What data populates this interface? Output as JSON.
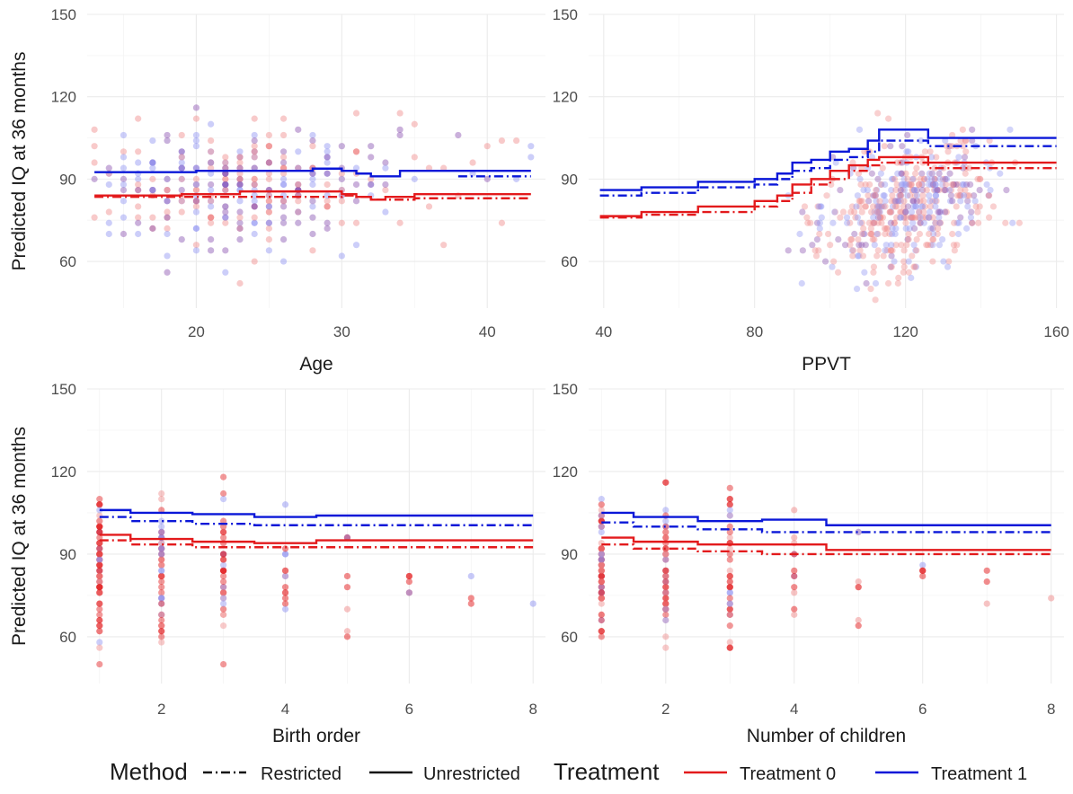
{
  "colors": {
    "treatment0": "#e31a1c",
    "treatment1": "#0a17d8",
    "point_red": "#f08a8a",
    "point_blue": "#8f93f2",
    "point_purple": "#8a4fb0",
    "grid": "#ebebeb"
  },
  "legend": {
    "method_title": "Method",
    "method_items": [
      {
        "label": "Restricted",
        "linetype": "dashdot"
      },
      {
        "label": "Unrestricted",
        "linetype": "solid"
      }
    ],
    "treatment_title": "Treatment",
    "treatment_items": [
      {
        "label": "Treatment 0",
        "color": "#e31a1c"
      },
      {
        "label": "Treatment 1",
        "color": "#0a17d8"
      }
    ],
    "placement": "bottom"
  },
  "chart_data": [
    {
      "type": "scatter",
      "panel": "top-left",
      "xlabel": "Age",
      "ylabel": "Predicted IQ at 36 months",
      "xlim": [
        12.5,
        44
      ],
      "ylim": [
        43,
        150
      ],
      "xticks": [
        20,
        30,
        40
      ],
      "yticks": [
        60,
        90,
        120,
        150
      ],
      "grid": true,
      "points_x_range": [
        13,
        43
      ],
      "series": [
        {
          "name": "Treatment 1 Unrestricted",
          "treatment": 1,
          "method": "Unrestricted",
          "x": [
            13,
            20,
            28,
            30,
            31,
            32,
            34,
            43
          ],
          "y": [
            92.5,
            93,
            93.8,
            93,
            92,
            91,
            93,
            93
          ]
        },
        {
          "name": "Treatment 1 Restricted",
          "treatment": 1,
          "method": "Restricted",
          "x": [
            38,
            43
          ],
          "y": [
            91,
            91
          ]
        },
        {
          "name": "Treatment 0 Unrestricted",
          "treatment": 0,
          "method": "Unrestricted",
          "x": [
            13,
            19,
            23,
            29,
            30,
            31,
            32,
            33,
            35,
            43
          ],
          "y": [
            84,
            84.5,
            85.5,
            85.5,
            84.5,
            83.5,
            82.5,
            83.5,
            84.5,
            84.5
          ]
        },
        {
          "name": "Treatment 0 Restricted",
          "treatment": 0,
          "method": "Restricted",
          "x": [
            13,
            30,
            31,
            32,
            35,
            43
          ],
          "y": [
            83.5,
            84,
            83.5,
            82.5,
            83,
            83
          ]
        }
      ]
    },
    {
      "type": "scatter",
      "panel": "top-right",
      "xlabel": "PPVT",
      "ylabel": "",
      "xlim": [
        36,
        162
      ],
      "ylim": [
        43,
        150
      ],
      "xticks": [
        40,
        80,
        120,
        160
      ],
      "yticks": [
        60,
        90,
        120,
        150
      ],
      "grid": true,
      "points_x_range": [
        40,
        160
      ],
      "series": [
        {
          "name": "Treatment 1 Unrestricted",
          "treatment": 1,
          "method": "Unrestricted",
          "x": [
            39,
            50,
            65,
            80,
            86,
            90,
            95,
            100,
            105,
            110,
            113,
            126,
            160
          ],
          "y": [
            86,
            87,
            89,
            90,
            92,
            96,
            97,
            100,
            101,
            104,
            108,
            105,
            105
          ]
        },
        {
          "name": "Treatment 1 Restricted",
          "treatment": 1,
          "method": "Restricted",
          "x": [
            39,
            50,
            65,
            80,
            86,
            90,
            95,
            100,
            105,
            110,
            113,
            126,
            160
          ],
          "y": [
            84,
            85,
            87,
            88,
            90,
            93,
            94,
            97,
            98,
            100,
            104,
            102,
            102
          ]
        },
        {
          "name": "Treatment 0 Unrestricted",
          "treatment": 0,
          "method": "Unrestricted",
          "x": [
            39,
            50,
            65,
            80,
            86,
            90,
            95,
            100,
            105,
            110,
            113,
            126,
            160
          ],
          "y": [
            76.5,
            78,
            80,
            82,
            84,
            88,
            90,
            93,
            95,
            97,
            98,
            96,
            96
          ]
        },
        {
          "name": "Treatment 0 Restricted",
          "treatment": 0,
          "method": "Restricted",
          "x": [
            39,
            50,
            65,
            80,
            86,
            90,
            95,
            100,
            105,
            110,
            113,
            126,
            160
          ],
          "y": [
            76,
            77,
            78,
            80,
            82,
            85,
            88,
            90,
            93,
            95,
            96,
            94,
            94
          ]
        }
      ]
    },
    {
      "type": "scatter",
      "panel": "bottom-left",
      "xlabel": "Birth order",
      "ylabel": "Predicted IQ at 36 months",
      "xlim": [
        0.8,
        8.2
      ],
      "ylim": [
        43,
        150
      ],
      "xticks": [
        2,
        4,
        6,
        8
      ],
      "yticks": [
        60,
        90,
        120,
        150
      ],
      "grid": true,
      "points_x_range": [
        1,
        8
      ],
      "series": [
        {
          "name": "Treatment 1 Unrestricted",
          "treatment": 1,
          "method": "Unrestricted",
          "x": [
            1,
            1.5,
            2.5,
            3.5,
            4.5,
            8
          ],
          "y": [
            106,
            105,
            104.5,
            103.5,
            104,
            104
          ]
        },
        {
          "name": "Treatment 1 Restricted",
          "treatment": 1,
          "method": "Restricted",
          "x": [
            1,
            1.5,
            2.5,
            3.5,
            8
          ],
          "y": [
            103.5,
            102,
            101,
            100.5,
            100.5
          ]
        },
        {
          "name": "Treatment 0 Unrestricted",
          "treatment": 0,
          "method": "Unrestricted",
          "x": [
            1,
            1.5,
            2.5,
            3.5,
            4.5,
            8
          ],
          "y": [
            97,
            95.5,
            94.5,
            94,
            95,
            95
          ]
        },
        {
          "name": "Treatment 0 Restricted",
          "treatment": 0,
          "method": "Restricted",
          "x": [
            1,
            1.5,
            2.5,
            8
          ],
          "y": [
            95,
            93.5,
            92.5,
            92.5
          ]
        }
      ]
    },
    {
      "type": "scatter",
      "panel": "bottom-right",
      "xlabel": "Number of children",
      "ylabel": "",
      "xlim": [
        0.8,
        8.2
      ],
      "ylim": [
        43,
        150
      ],
      "xticks": [
        2,
        4,
        6,
        8
      ],
      "yticks": [
        60,
        90,
        120,
        150
      ],
      "grid": true,
      "points_x_range": [
        1,
        8
      ],
      "series": [
        {
          "name": "Treatment 1 Unrestricted",
          "treatment": 1,
          "method": "Unrestricted",
          "x": [
            1,
            1.5,
            2.5,
            3.5,
            4.5,
            8
          ],
          "y": [
            105,
            103.5,
            102,
            102.5,
            100.5,
            100.5
          ]
        },
        {
          "name": "Treatment 1 Restricted",
          "treatment": 1,
          "method": "Restricted",
          "x": [
            1,
            1.5,
            2.5,
            3.5,
            8
          ],
          "y": [
            101.5,
            100,
            99,
            98,
            98
          ]
        },
        {
          "name": "Treatment 0 Unrestricted",
          "treatment": 0,
          "method": "Unrestricted",
          "x": [
            1,
            1.5,
            2.5,
            4.5,
            8
          ],
          "y": [
            96,
            94.5,
            93.5,
            91.5,
            91.5
          ]
        },
        {
          "name": "Treatment 0 Restricted",
          "treatment": 0,
          "method": "Restricted",
          "x": [
            1,
            1.5,
            2.5,
            3.5,
            8
          ],
          "y": [
            93.5,
            92,
            91,
            90,
            90
          ]
        }
      ]
    }
  ]
}
